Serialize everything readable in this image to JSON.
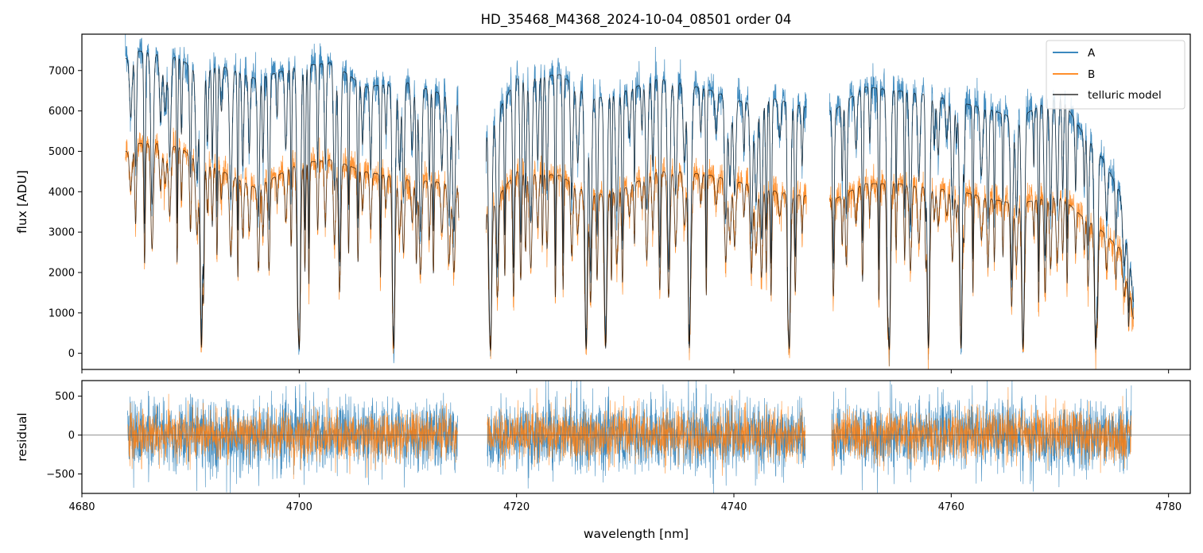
{
  "chart_data": [
    {
      "type": "line",
      "title": "HD_35468_M4368_2024-10-04_08501  order 04",
      "xlabel": "",
      "ylabel": "flux [ADU]",
      "xlim": [
        4680,
        4782
      ],
      "ylim": [
        -400,
        7900
      ],
      "xticks": [
        4680,
        4700,
        4720,
        4740,
        4760,
        4780
      ],
      "xticklabels_visible": false,
      "yticks": [
        0,
        1000,
        2000,
        3000,
        4000,
        5000,
        6000,
        7000
      ],
      "yticklabels": [
        "0",
        "1000",
        "2000",
        "3000",
        "4000",
        "5000",
        "6000",
        "7000"
      ],
      "grid": false,
      "legend": "top-right",
      "coverage": [
        [
          4684.0,
          4714.7
        ],
        [
          4717.2,
          4746.7
        ],
        [
          4748.8,
          4776.8
        ]
      ],
      "series": [
        {
          "name": "A",
          "color": "#1f77b4",
          "continuum": [
            [
              4684.2,
              7300
            ],
            [
              4685,
              7500
            ],
            [
              4687,
              7400
            ],
            [
              4689,
              7300
            ],
            [
              4690.5,
              7000
            ],
            [
              4693,
              7100
            ],
            [
              4696,
              6800
            ],
            [
              4700,
              7100
            ],
            [
              4703,
              7200
            ],
            [
              4706,
              6600
            ],
            [
              4710,
              6700
            ],
            [
              4714.5,
              6300
            ],
            [
              4717.5,
              5600
            ],
            [
              4720,
              6800
            ],
            [
              4724,
              6900
            ],
            [
              4727,
              6300
            ],
            [
              4730,
              6500
            ],
            [
              4733,
              6800
            ],
            [
              4735,
              6700
            ],
            [
              4738,
              6500
            ],
            [
              4741,
              6200
            ],
            [
              4744,
              6300
            ],
            [
              4746.5,
              6100
            ],
            [
              4749.2,
              6000
            ],
            [
              4752,
              6600
            ],
            [
              4755,
              6500
            ],
            [
              4758,
              6400
            ],
            [
              4761,
              6200
            ],
            [
              4764,
              6000
            ],
            [
              4766,
              5800
            ],
            [
              4768,
              6100
            ],
            [
              4770,
              6400
            ],
            [
              4772,
              5500
            ],
            [
              4774,
              4800
            ],
            [
              4775.5,
              4000
            ],
            [
              4776.8,
              1500
            ]
          ],
          "deep_lines": [
            4691.0,
            4700.0,
            4708.7,
            4717.6,
            4726.4,
            4728.2,
            4735.9,
            4745.1,
            4754.3,
            4757.9,
            4760.9,
            4766.6,
            4773.3
          ],
          "noise": 260
        },
        {
          "name": "B",
          "color": "#ff7f0e",
          "continuum": [
            [
              4684.2,
              5000
            ],
            [
              4685,
              5200
            ],
            [
              4687,
              5200
            ],
            [
              4689,
              5100
            ],
            [
              4690.5,
              4800
            ],
            [
              4693,
              4500
            ],
            [
              4696,
              4100
            ],
            [
              4700,
              4700
            ],
            [
              4703,
              4800
            ],
            [
              4706,
              4500
            ],
            [
              4710,
              4300
            ],
            [
              4714.5,
              4200
            ],
            [
              4717.5,
              3600
            ],
            [
              4720,
              4500
            ],
            [
              4724,
              4400
            ],
            [
              4727,
              3900
            ],
            [
              4730,
              4100
            ],
            [
              4733,
              4500
            ],
            [
              4735,
              4500
            ],
            [
              4738,
              4400
            ],
            [
              4741,
              4200
            ],
            [
              4744,
              4000
            ],
            [
              4746.5,
              3900
            ],
            [
              4749.2,
              3800
            ],
            [
              4752,
              4200
            ],
            [
              4755,
              4200
            ],
            [
              4758,
              4100
            ],
            [
              4761,
              4000
            ],
            [
              4764,
              3800
            ],
            [
              4766,
              3700
            ],
            [
              4768,
              3800
            ],
            [
              4770,
              3900
            ],
            [
              4772,
              3400
            ],
            [
              4774,
              3000
            ],
            [
              4775.5,
              2600
            ],
            [
              4776.8,
              1000
            ]
          ],
          "deep_lines": [
            4691.0,
            4700.0,
            4708.7,
            4717.6,
            4726.4,
            4728.2,
            4735.9,
            4745.1,
            4754.3,
            4757.9,
            4760.9,
            4766.6,
            4773.3
          ],
          "noise": 220
        },
        {
          "name": "telluric model",
          "color": "#000000",
          "alpha": 0.7
        }
      ]
    },
    {
      "type": "line",
      "title": "",
      "xlabel": "wavelength [nm]",
      "ylabel": "residual",
      "xlim": [
        4680,
        4782
      ],
      "ylim": [
        -750,
        700
      ],
      "xticks": [
        4680,
        4700,
        4720,
        4740,
        4760,
        4780
      ],
      "xticklabels": [
        "4680",
        "4700",
        "4720",
        "4740",
        "4760",
        "4780"
      ],
      "yticks": [
        -500,
        0,
        500
      ],
      "yticklabels": [
        "−500",
        "0",
        "500"
      ],
      "zero_line": true,
      "grid": false,
      "coverage": [
        [
          4684.2,
          4714.6
        ],
        [
          4717.3,
          4746.6
        ],
        [
          4749.0,
          4776.6
        ]
      ],
      "series": [
        {
          "name": "A",
          "color": "#1f77b4",
          "sigma": 230
        },
        {
          "name": "B",
          "color": "#ff7f0e",
          "sigma": 160
        }
      ]
    }
  ]
}
